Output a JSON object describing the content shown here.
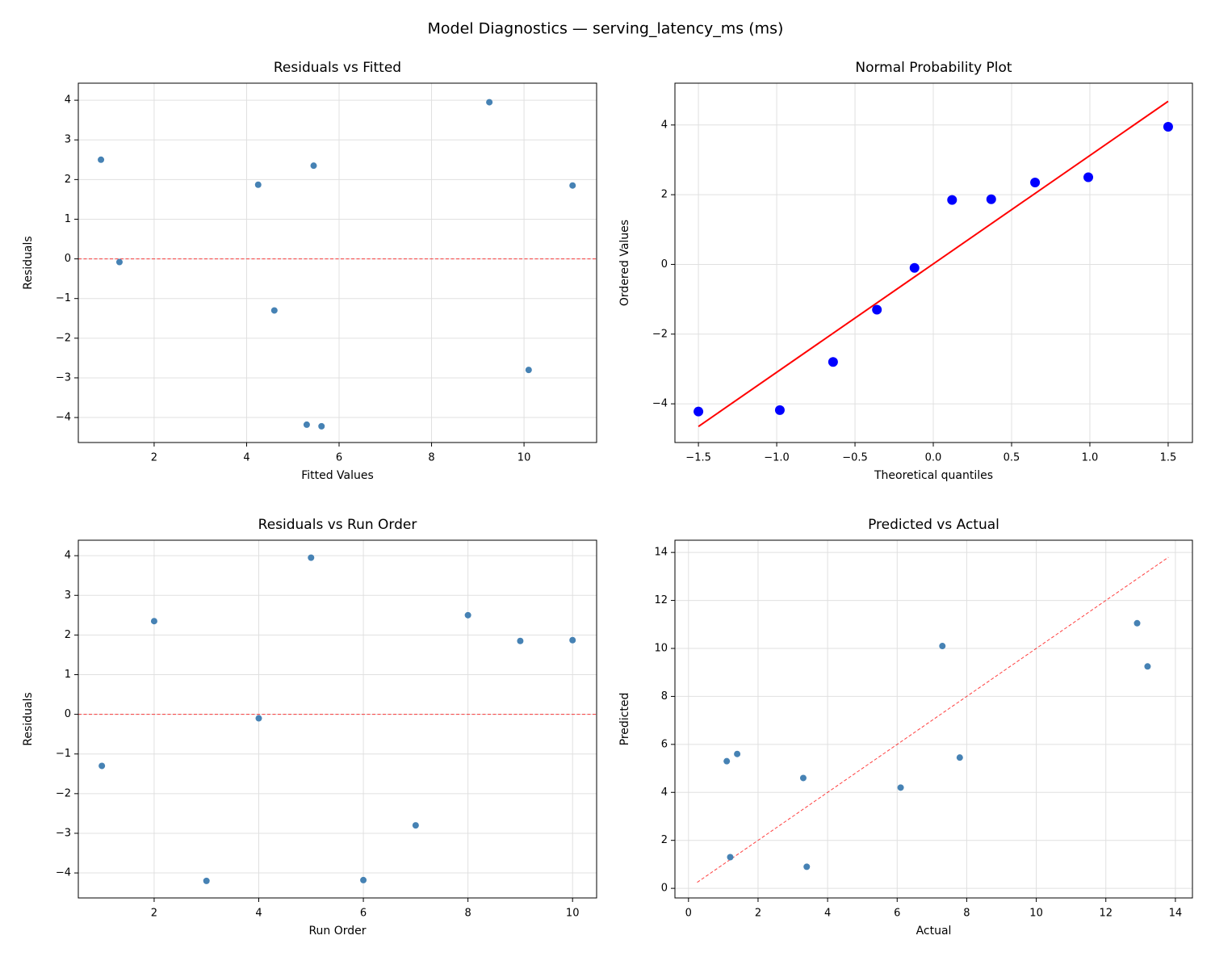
{
  "title": "Model Diagnostics — serving_latency_ms (ms)",
  "chart_data": [
    {
      "type": "scatter",
      "title": "Residuals vs Fitted",
      "x_label": "Fitted Values",
      "y_label": "Residuals",
      "x": [
        0.85,
        1.25,
        4.25,
        4.6,
        5.3,
        5.45,
        5.62,
        9.25,
        10.1,
        11.05
      ],
      "values": [
        2.5,
        -0.08,
        1.87,
        -1.3,
        -4.18,
        2.35,
        -4.22,
        3.95,
        -2.8,
        1.85
      ],
      "color": "#4682b4",
      "hline": {
        "y": 0,
        "color": "#ff0000"
      },
      "xlim": [
        0.36,
        11.57
      ],
      "ylim": [
        -4.63,
        4.43
      ],
      "xticks": [
        2,
        4,
        6,
        8,
        10
      ],
      "yticks": [
        {
          "value": -4,
          "label": "−4"
        },
        {
          "value": -3,
          "label": "−3"
        },
        {
          "value": -2,
          "label": "−2"
        },
        {
          "value": -1,
          "label": "−1"
        },
        0,
        1,
        2,
        3,
        4
      ],
      "grid": true
    },
    {
      "type": "scatter",
      "title": "Normal Probability Plot",
      "x_label": "Theoretical quantiles",
      "y_label": "Ordered Values",
      "x": [
        -1.5,
        -0.98,
        -0.64,
        -0.36,
        -0.12,
        0.12,
        0.37,
        0.65,
        0.99,
        1.5
      ],
      "values": [
        -4.22,
        -4.18,
        -2.8,
        -1.3,
        -0.1,
        1.85,
        1.87,
        2.35,
        2.5,
        3.95
      ],
      "color": "#0000ff",
      "line": {
        "x": [
          -1.5,
          1.5
        ],
        "y": [
          -4.65,
          4.68
        ],
        "color": "#ff0000",
        "dashed": false
      },
      "xlim": [
        -1.65,
        1.655
      ],
      "ylim": [
        -5.11,
        5.2
      ],
      "xticks": [
        {
          "value": -1.5,
          "label": "−1.5"
        },
        {
          "value": -1.0,
          "label": "−1.0"
        },
        {
          "value": -0.5,
          "label": "−0.5"
        },
        {
          "value": 0,
          "label": "0.0"
        },
        0.5,
        {
          "value": 1.0,
          "label": "1.0"
        },
        1.5
      ],
      "yticks": [
        {
          "value": -4,
          "label": "−4"
        },
        {
          "value": -2,
          "label": "−2"
        },
        0,
        2,
        4
      ],
      "grid": true
    },
    {
      "type": "scatter",
      "title": "Residuals vs Run Order",
      "x_label": "Run Order",
      "y_label": "Residuals",
      "x": [
        1,
        2,
        3,
        4,
        5,
        6,
        7,
        8,
        9,
        10
      ],
      "values": [
        -1.3,
        2.35,
        -4.2,
        -0.1,
        3.95,
        -4.18,
        -2.8,
        2.5,
        1.85,
        1.87
      ],
      "color": "#4682b4",
      "hline": {
        "y": 0,
        "color": "#ff0000"
      },
      "xlim": [
        0.55,
        10.46
      ],
      "ylim": [
        -4.63,
        4.39
      ],
      "xticks": [
        2,
        4,
        6,
        8,
        10
      ],
      "yticks": [
        {
          "value": -4,
          "label": "−4"
        },
        {
          "value": -3,
          "label": "−3"
        },
        {
          "value": -2,
          "label": "−2"
        },
        {
          "value": -1,
          "label": "−1"
        },
        0,
        1,
        2,
        3,
        4
      ],
      "grid": true
    },
    {
      "type": "scatter",
      "title": "Predicted vs Actual",
      "x_label": "Actual",
      "y_label": "Predicted",
      "x": [
        1.1,
        1.4,
        1.2,
        3.3,
        3.4,
        6.1,
        7.3,
        7.8,
        12.9,
        13.2
      ],
      "values": [
        5.3,
        5.6,
        1.3,
        4.6,
        0.9,
        4.2,
        10.1,
        5.45,
        11.05,
        9.25
      ],
      "color": "#4682b4",
      "line": {
        "x": [
          0.25,
          13.8
        ],
        "y": [
          0.25,
          13.8
        ],
        "color": "#ff0000",
        "dashed": true
      },
      "xlim": [
        -0.39,
        14.49
      ],
      "ylim": [
        -0.4,
        14.51
      ],
      "xticks": [
        0,
        2,
        4,
        6,
        8,
        10,
        12,
        14
      ],
      "yticks": [
        0,
        2,
        4,
        6,
        8,
        10,
        12,
        14
      ],
      "grid": true
    }
  ]
}
